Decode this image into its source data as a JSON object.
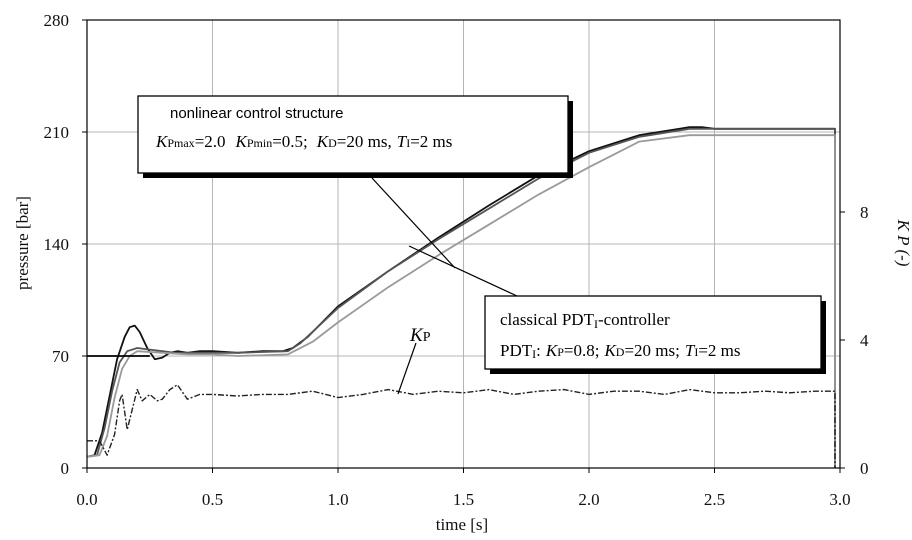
{
  "chart_data": {
    "type": "line",
    "xlabel": "time [s]",
    "ylabel_left": "pressure [bar]",
    "ylabel_right": "K P (-)",
    "xlim": [
      0,
      3.0
    ],
    "ylim_left": [
      0,
      280
    ],
    "ylim_right": [
      0,
      14
    ],
    "xticks": [
      "0.0",
      "0.5",
      "1.0",
      "1.5",
      "2.0",
      "2.5",
      "3.0"
    ],
    "yticks_left": [
      "0",
      "70",
      "140",
      "210",
      "280"
    ],
    "yticks_right": [
      "0",
      "4",
      "8"
    ],
    "grid": true,
    "series": [
      {
        "axis": "left",
        "color": "#111111",
        "x": [
          0.0,
          0.03,
          0.06,
          0.09,
          0.12,
          0.15,
          0.17,
          0.19,
          0.21,
          0.24,
          0.27,
          0.3,
          0.33,
          0.36,
          0.4,
          0.45,
          0.5,
          0.6,
          0.7,
          0.78,
          0.82,
          0.88,
          1.0,
          1.2,
          1.4,
          1.6,
          1.8,
          2.0,
          2.2,
          2.4,
          2.45,
          2.5,
          2.6,
          2.8,
          2.98,
          2.98
        ],
        "y": [
          7,
          8,
          22,
          45,
          68,
          82,
          88,
          89,
          85,
          75,
          68,
          69,
          72,
          73,
          72,
          73,
          73,
          72,
          73,
          73,
          75,
          82,
          101,
          123,
          144,
          164,
          183,
          198,
          208,
          213,
          213,
          212,
          212,
          212,
          212,
          0
        ]
      },
      {
        "axis": "left",
        "color": "#555555",
        "x": [
          0.0,
          0.04,
          0.07,
          0.1,
          0.13,
          0.16,
          0.2,
          0.25,
          0.3,
          0.35,
          0.45,
          0.6,
          0.8,
          0.85,
          1.0,
          1.2,
          1.4,
          1.6,
          1.8,
          2.0,
          2.2,
          2.4,
          2.45,
          2.5,
          2.7,
          2.98,
          2.98
        ],
        "y": [
          7,
          8,
          25,
          48,
          66,
          73,
          75,
          74,
          73,
          72,
          72,
          72,
          73,
          78,
          100,
          123,
          143,
          162,
          181,
          197,
          207,
          212,
          212,
          212,
          212,
          212,
          0
        ]
      },
      {
        "axis": "left",
        "color": "#9a9a9a",
        "x": [
          0.0,
          0.05,
          0.08,
          0.11,
          0.14,
          0.17,
          0.2,
          0.3,
          0.4,
          0.5,
          0.6,
          0.8,
          0.9,
          1.0,
          1.2,
          1.4,
          1.6,
          1.8,
          2.0,
          2.2,
          2.4,
          2.5,
          2.6,
          2.8,
          2.98,
          2.98
        ],
        "y": [
          7,
          8,
          20,
          44,
          62,
          70,
          73,
          72,
          71,
          71,
          70,
          71,
          79,
          91,
          113,
          133,
          152,
          171,
          188,
          204,
          208,
          208,
          208,
          208,
          208,
          0
        ]
      },
      {
        "axis": "left",
        "color": "#000000",
        "x": [
          0.0,
          0.25
        ],
        "y": [
          70,
          70
        ]
      },
      {
        "axis": "right",
        "color": "#222222",
        "dashed": true,
        "x": [
          0.0,
          0.05,
          0.08,
          0.11,
          0.13,
          0.14,
          0.16,
          0.2,
          0.22,
          0.25,
          0.28,
          0.3,
          0.33,
          0.36,
          0.4,
          0.45,
          0.5,
          0.6,
          0.7,
          0.8,
          0.9,
          1.0,
          1.1,
          1.2,
          1.3,
          1.4,
          1.5,
          1.6,
          1.7,
          1.8,
          1.9,
          2.0,
          2.1,
          2.2,
          2.3,
          2.4,
          2.5,
          2.6,
          2.7,
          2.8,
          2.9,
          2.98,
          2.98
        ],
        "y": [
          0.85,
          0.85,
          0.4,
          1.05,
          2.1,
          2.3,
          1.2,
          2.45,
          2.1,
          2.3,
          2.1,
          2.15,
          2.45,
          2.6,
          2.15,
          2.3,
          2.3,
          2.25,
          2.3,
          2.3,
          2.4,
          2.2,
          2.3,
          2.45,
          2.3,
          2.4,
          2.35,
          2.45,
          2.3,
          2.4,
          2.45,
          2.3,
          2.4,
          2.4,
          2.3,
          2.45,
          2.35,
          2.35,
          2.4,
          2.35,
          2.4,
          2.4,
          0
        ]
      }
    ],
    "annotations": {
      "nonlinear": {
        "title": "nonlinear control structure",
        "k": "K",
        "kpmax_sub": "Pmax",
        "kpmax_val": "=2.0",
        "kpmin_sub": "Pmin",
        "kpmin_val": "=0.5;",
        "kd_sub": "D",
        "kd_val": "=20 ms,",
        "t": "T",
        "ti_sub": "I",
        "ti_val": "=2 ms"
      },
      "classical": {
        "title_a": "classical PDT",
        "title_sub": "I",
        "title_b": "-controller",
        "pdt": "PDT",
        "pdt_sub": "I",
        "pdt_colon": ":",
        "k": "K",
        "kp_sub": "P",
        "kp_val": "=0.8;",
        "kd_sub": "D",
        "kd_val": "=20 ms;",
        "t": "T",
        "ti_sub": "I",
        "ti_val": "=2 ms"
      },
      "kp_label": {
        "k": "K",
        "sub": "P"
      }
    }
  }
}
